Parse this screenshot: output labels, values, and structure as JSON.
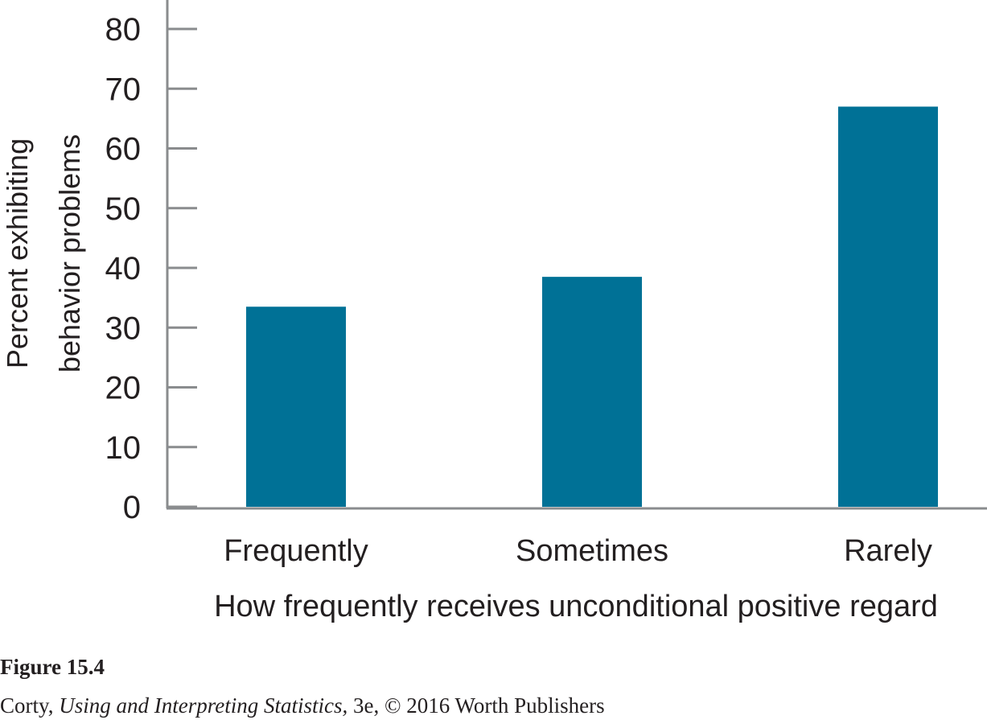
{
  "chart_data": {
    "type": "bar",
    "categories": [
      "Frequently",
      "Sometimes",
      "Rarely"
    ],
    "values": [
      33.5,
      38.5,
      67
    ],
    "xlabel": "How frequently receives unconditional positive regard",
    "ylabel_lines": [
      "Percent exhibiting",
      "behavior problems"
    ],
    "yticks": [
      0,
      10,
      20,
      30,
      40,
      50,
      60,
      70,
      80
    ],
    "ylim": [
      0,
      80
    ],
    "grid": false,
    "bar_color": "#007196",
    "axis_color": "#8a8c8e",
    "text_color": "#231f20"
  },
  "caption": {
    "figure_label": "Figure 15.4",
    "author": "Corty, ",
    "book_title": "Using and Interpreting Statistics,",
    "edition_publisher": " 3e, © 2016 Worth Publishers"
  }
}
